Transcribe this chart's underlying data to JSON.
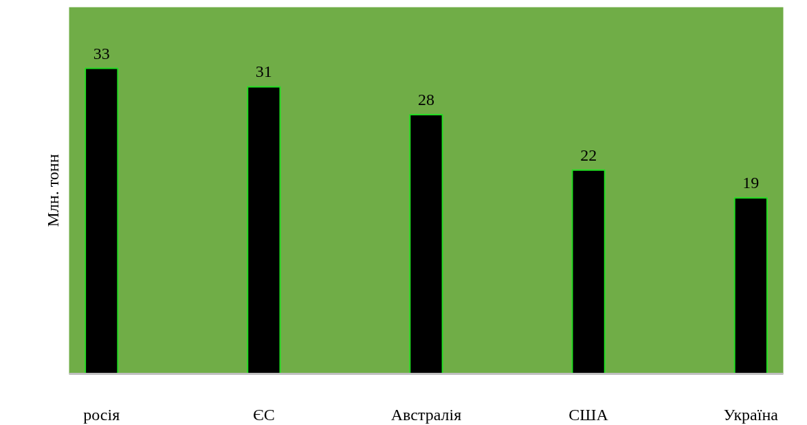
{
  "chart_data": {
    "type": "bar",
    "ylabel": "Млн. тонн",
    "categories": [
      "росія",
      "ЄС",
      "Австралія",
      "США",
      "Україна"
    ],
    "values": [
      33,
      31,
      28,
      22,
      19
    ],
    "color": "#000000",
    "data_labels": true,
    "tick_labels": "x"
  }
}
